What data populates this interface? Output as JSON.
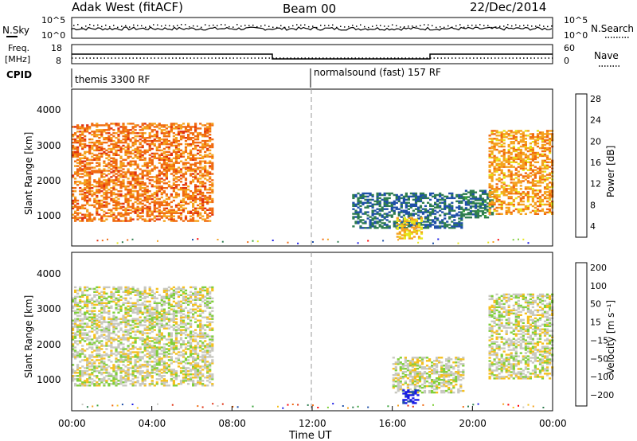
{
  "header": {
    "radar_title": "Adak West (fitACF)",
    "beam": "Beam 00",
    "date": "22/Dec/2014"
  },
  "top_panel": {
    "nsky_label": "N.Sky",
    "nsky_ticks": [
      "10^5",
      "10^0"
    ],
    "nsearch_label": "N.Search",
    "nsearch_ticks": [
      "10^5",
      "10^0"
    ],
    "freq_label_1": "Freq.",
    "freq_label_2": "[MHz]",
    "freq_ticks": [
      "18",
      "8"
    ],
    "nave_label": "Nave",
    "nave_ticks": [
      "60",
      "0"
    ],
    "cpid_label": "CPID",
    "cpid_text_1": "themis 3300 RF",
    "cpid_text_2": "normalsound (fast) 157 RF"
  },
  "chart_data": [
    {
      "type": "heatmap",
      "name": "power",
      "ylabel": "Slant Range [km]",
      "y_ticks": [
        "1000",
        "2000",
        "3000",
        "4000"
      ],
      "colorbar_label": "Power [dB]",
      "colorbar_ticks": [
        "28",
        "24",
        "20",
        "16",
        "12",
        "8",
        "4"
      ],
      "colors": [
        "#1919e6",
        "#1e4fa8",
        "#2e7d4f",
        "#3aa33a",
        "#7fcf3a",
        "#e6e61a",
        "#f5a21e",
        "#f06a10",
        "#e03010",
        "#ff0000"
      ],
      "vmin": 0,
      "vmax": 30,
      "regions": [
        {
          "t0": 0.0,
          "t1": 7.0,
          "r0": 700,
          "r1": 3500,
          "level": 22
        },
        {
          "t0": 14.0,
          "t1": 19.5,
          "r0": 500,
          "r1": 1500,
          "level": 6
        },
        {
          "t0": 16.2,
          "t1": 17.5,
          "r0": 200,
          "r1": 800,
          "level": 18
        },
        {
          "t0": 19.5,
          "t1": 21.0,
          "r0": 800,
          "r1": 1600,
          "level": 7
        },
        {
          "t0": 20.8,
          "t1": 24.0,
          "r0": 900,
          "r1": 3300,
          "level": 20
        }
      ]
    },
    {
      "type": "heatmap",
      "name": "velocity",
      "ylabel": "Slant Range [km]",
      "y_ticks": [
        "1000",
        "2000",
        "3000",
        "4000"
      ],
      "colorbar_label": "Velocity [m s⁻¹]",
      "colorbar_ticks": [
        "200",
        "100",
        "50",
        "15",
        "−15",
        "−50",
        "−100",
        "−200"
      ],
      "colors": [
        "#1919e6",
        "#1e4fa8",
        "#2e7d4f",
        "#3aa33a",
        "#7fcf3a",
        "#c8c8c0",
        "#f5c01e",
        "#f5a21e",
        "#f06a10",
        "#e03010",
        "#ff0000"
      ],
      "vmin": -250,
      "vmax": 250,
      "regions": [
        {
          "t0": 0.0,
          "t1": 7.0,
          "r0": 700,
          "r1": 3500,
          "level": 0
        },
        {
          "t0": 16.0,
          "t1": 19.5,
          "r0": 500,
          "r1": 1500,
          "level": 0
        },
        {
          "t0": 16.5,
          "t1": 17.3,
          "r0": 200,
          "r1": 600,
          "level": -220
        },
        {
          "t0": 20.8,
          "t1": 24.0,
          "r0": 900,
          "r1": 3300,
          "level": 0
        }
      ]
    }
  ],
  "x_axis": {
    "label": "Time UT",
    "ticks": [
      "00:00",
      "04:00",
      "08:00",
      "12:00",
      "16:00",
      "20:00",
      "00:00"
    ]
  }
}
